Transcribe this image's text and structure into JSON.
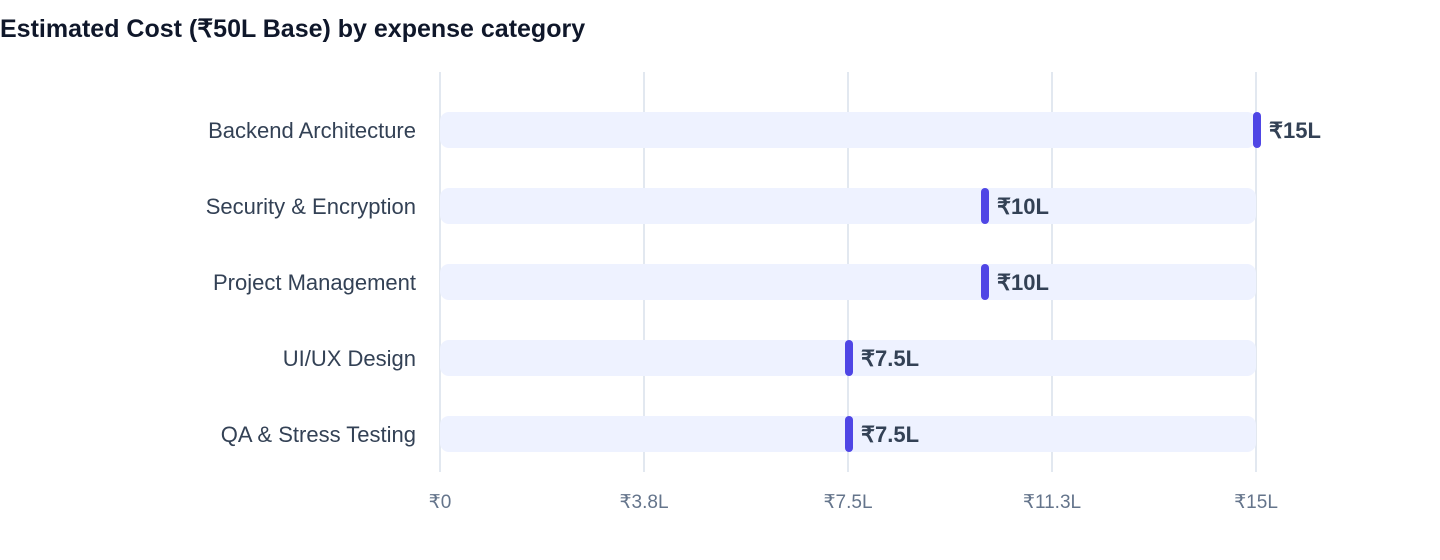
{
  "chart_data": {
    "type": "bar",
    "orientation": "horizontal",
    "title": "Estimated Cost (₹50L Base) by expense category",
    "categories": [
      "Backend Architecture",
      "Security & Encryption",
      "Project Management",
      "UI/UX Design",
      "QA & Stress Testing"
    ],
    "values": [
      15,
      10,
      10,
      7.5,
      7.5
    ],
    "value_labels": [
      "₹15L",
      "₹10L",
      "₹10L",
      "₹7.5L",
      "₹7.5L"
    ],
    "xlim": [
      0,
      15
    ],
    "x_ticks": [
      0,
      3.75,
      7.5,
      11.25,
      15
    ],
    "x_tick_labels": [
      "₹0",
      "₹3.8L",
      "₹7.5L",
      "₹11.3L",
      "₹15L"
    ],
    "grid": true,
    "colors": {
      "track": "#eef2ff",
      "marker": "#4f46e5",
      "grid": "#e2e8f0",
      "title": "#0f172a",
      "label": "#334155",
      "tick": "#64748b"
    }
  }
}
